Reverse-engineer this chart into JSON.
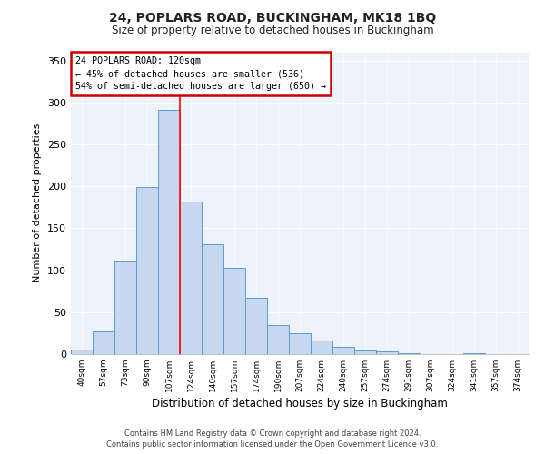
{
  "title1": "24, POPLARS ROAD, BUCKINGHAM, MK18 1BQ",
  "title2": "Size of property relative to detached houses in Buckingham",
  "xlabel": "Distribution of detached houses by size in Buckingham",
  "ylabel": "Number of detached properties",
  "categories": [
    "40sqm",
    "57sqm",
    "73sqm",
    "90sqm",
    "107sqm",
    "124sqm",
    "140sqm",
    "157sqm",
    "174sqm",
    "190sqm",
    "207sqm",
    "224sqm",
    "240sqm",
    "257sqm",
    "274sqm",
    "291sqm",
    "307sqm",
    "324sqm",
    "341sqm",
    "357sqm",
    "374sqm"
  ],
  "values": [
    5,
    27,
    112,
    199,
    291,
    182,
    131,
    103,
    67,
    35,
    25,
    16,
    9,
    4,
    3,
    1,
    0,
    0,
    1,
    0,
    0
  ],
  "bar_color": "#c5d8f0",
  "bar_edge_color": "#5b9bd5",
  "property_line_x": 4.5,
  "annotation_line1": "24 POPLARS ROAD: 120sqm",
  "annotation_line2": "← 45% of detached houses are smaller (536)",
  "annotation_line3": "54% of semi-detached houses are larger (650) →",
  "annotation_box_color": "#ffffff",
  "annotation_box_edge": "#cc0000",
  "footer1": "Contains HM Land Registry data © Crown copyright and database right 2024.",
  "footer2": "Contains public sector information licensed under the Open Government Licence v3.0.",
  "bg_color": "#eef2fa",
  "ylim": [
    0,
    360
  ],
  "yticks": [
    0,
    50,
    100,
    150,
    200,
    250,
    300,
    350
  ]
}
